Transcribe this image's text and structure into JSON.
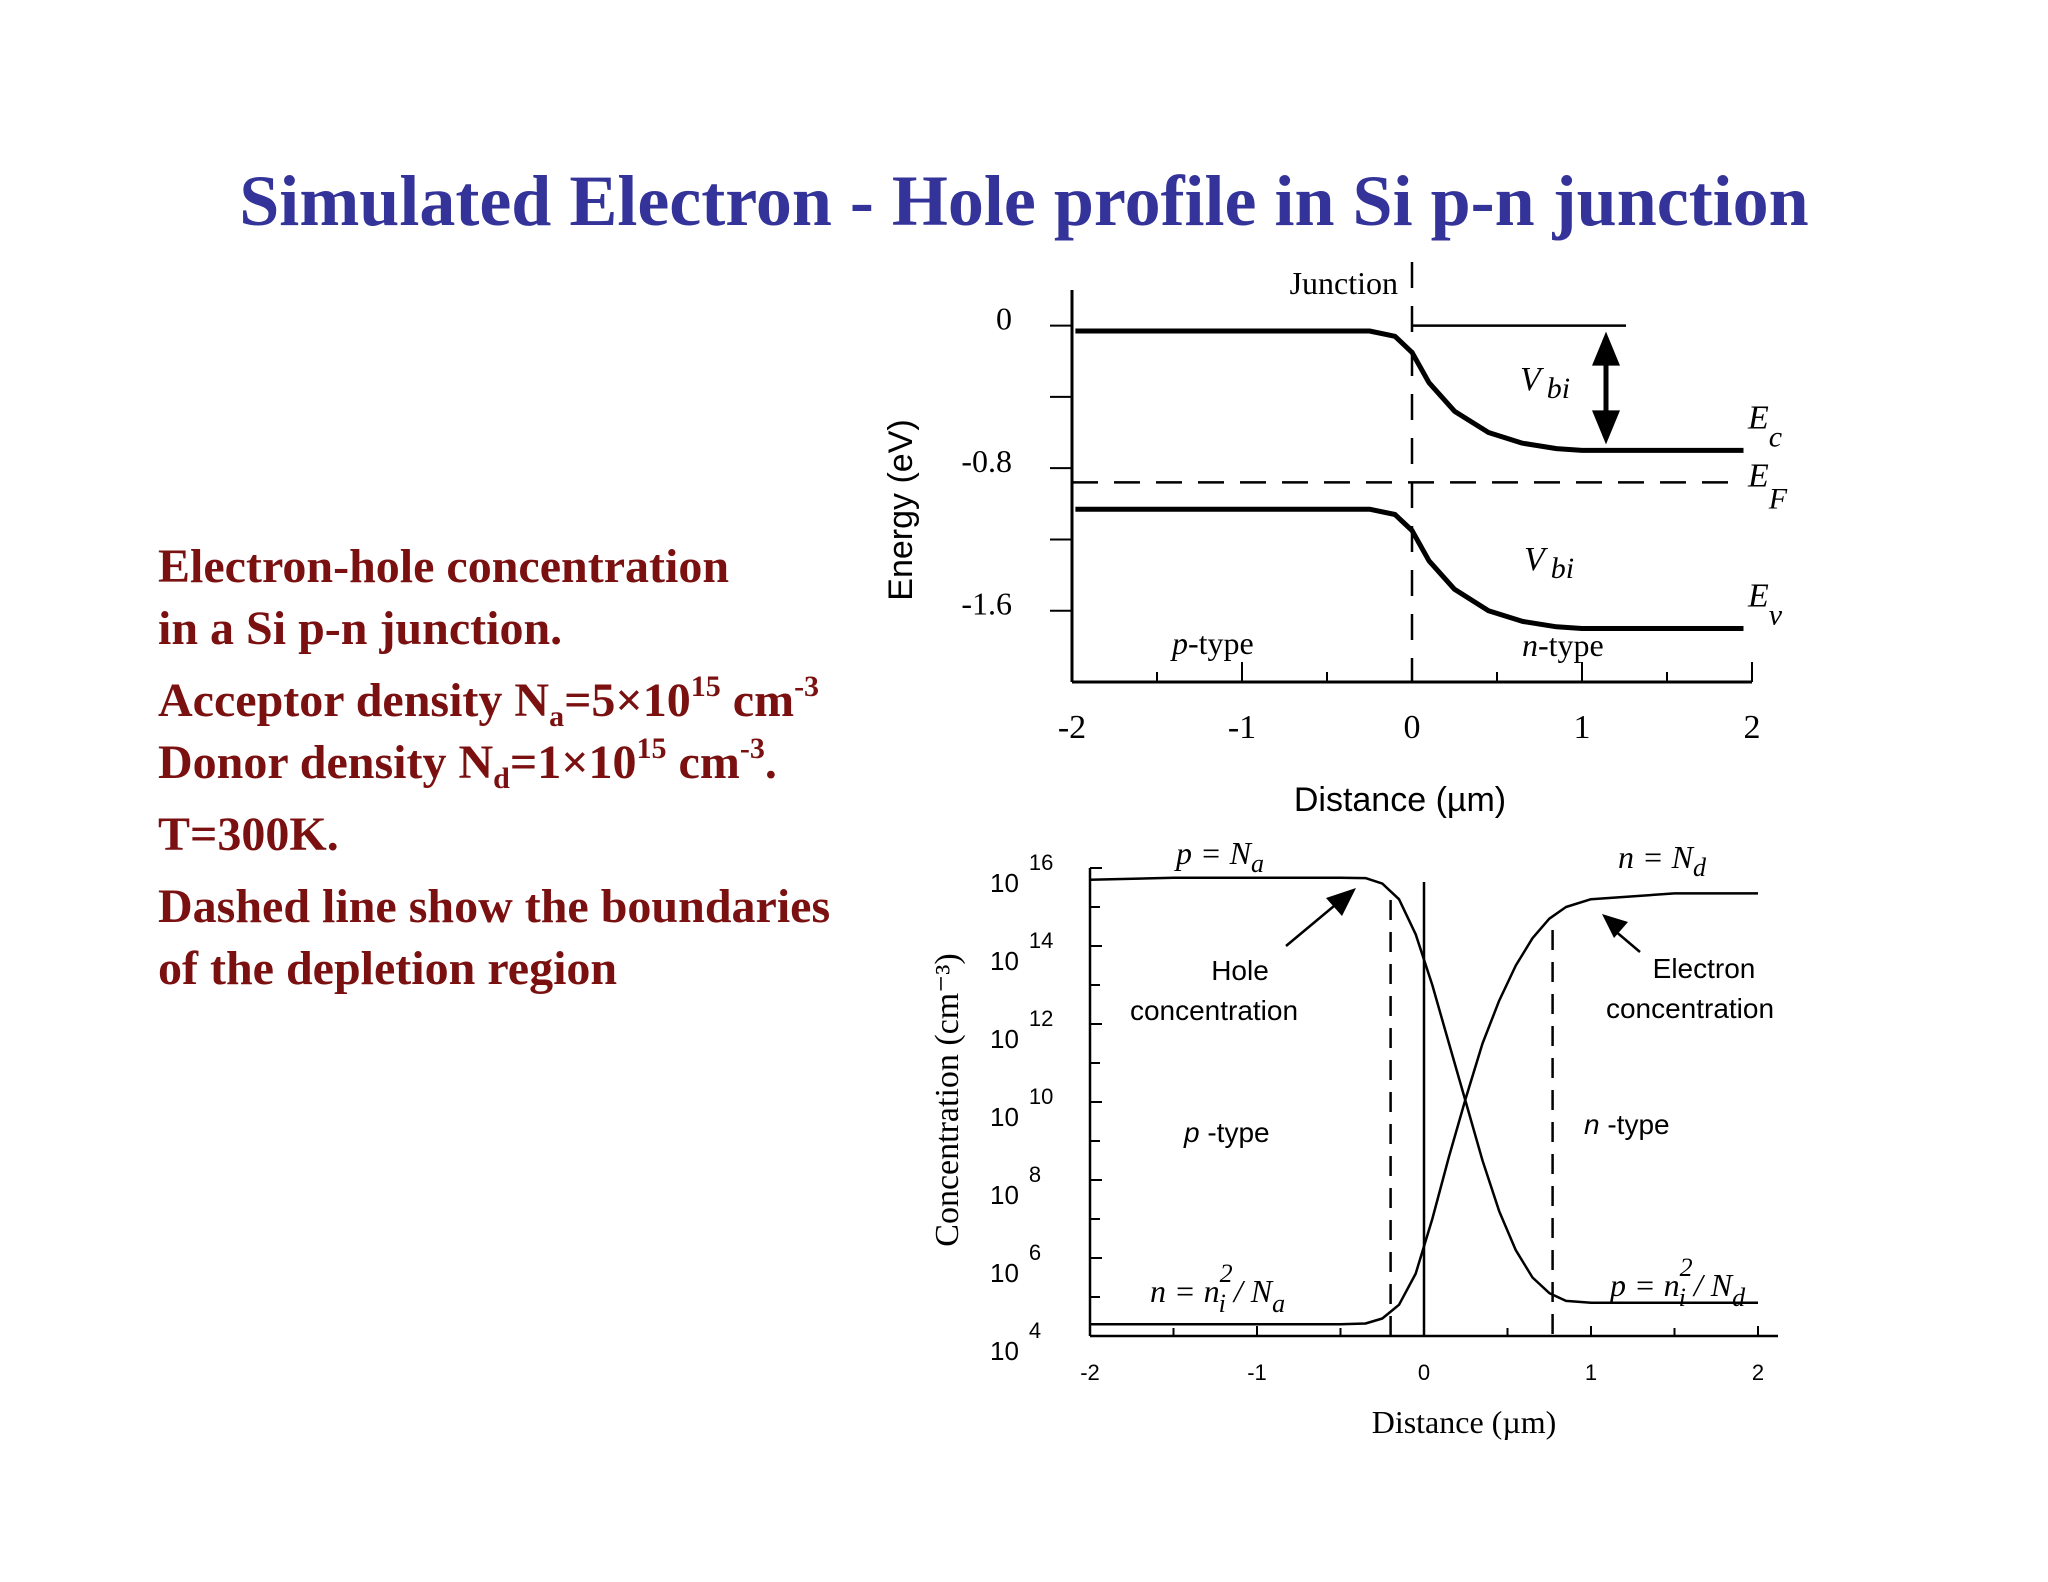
{
  "title": "Simulated Electron - Hole profile in Si p-n junction",
  "notes": {
    "line1": "Electron-hole concentration",
    "line2": "in a Si p-n junction.",
    "acceptor_prefix": "Acceptor density N",
    "acceptor_sub": "a",
    "acceptor_mid": "=5×10",
    "acceptor_exp": "15",
    "acceptor_unit": " cm",
    "acceptor_unit_exp": "-3",
    "donor_prefix": "Donor density N",
    "donor_sub": "d",
    "donor_mid": "=1×10",
    "donor_exp": "15",
    "donor_unit": " cm",
    "donor_unit_exp": "-3",
    "donor_end": ".",
    "temperature": "T=300K.",
    "dashed1": "Dashed line show the boundaries",
    "dashed2": "of the depletion region"
  },
  "chart_data": [
    {
      "type": "line",
      "ylabel": "Energy (eV)",
      "xlabel": "Distance (µm)",
      "x_ticks": [
        "-2",
        "-1",
        "0",
        "1",
        "2"
      ],
      "y_ticks": [
        "0",
        "-0.8",
        "-1.6"
      ],
      "xlim": [
        -2,
        2
      ],
      "ylim": [
        -2.0,
        0.2
      ],
      "junction_label": "Junction",
      "vbi_label": "V",
      "vbi_sub": "bi",
      "region_p": "p",
      "region_p_suffix": "-type",
      "region_n": "n",
      "region_n_suffix": "-type",
      "fermi_level": -0.88,
      "series": [
        {
          "name": "E",
          "name_sub": "c",
          "x": [
            -1.98,
            -0.5,
            -0.25,
            -0.1,
            0.0,
            0.1,
            0.25,
            0.45,
            0.65,
            0.85,
            1.0,
            1.5,
            1.95
          ],
          "y": [
            -0.03,
            -0.03,
            -0.03,
            -0.06,
            -0.15,
            -0.32,
            -0.48,
            -0.6,
            -0.66,
            -0.69,
            -0.7,
            -0.7,
            -0.7
          ]
        },
        {
          "name": "E",
          "name_sub": "v",
          "x": [
            -1.98,
            -0.5,
            -0.25,
            -0.1,
            0.0,
            0.1,
            0.25,
            0.45,
            0.65,
            0.85,
            1.0,
            1.5,
            1.95
          ],
          "y": [
            -1.03,
            -1.03,
            -1.03,
            -1.06,
            -1.15,
            -1.32,
            -1.48,
            -1.6,
            -1.66,
            -1.69,
            -1.7,
            -1.7,
            -1.7
          ]
        }
      ],
      "fermi_label": "E",
      "fermi_sub": "F"
    },
    {
      "type": "line",
      "ylabel": "Concentration (cm⁻³)",
      "xlabel": "Distance (µm)",
      "x_ticks": [
        "-2",
        "-1",
        "0",
        "1",
        "2"
      ],
      "y_tick_base": "10",
      "y_tick_exps": [
        "16",
        "14",
        "12",
        "10",
        "8",
        "6",
        "4"
      ],
      "xlim": [
        -2,
        2
      ],
      "ylim": [
        4,
        16
      ],
      "depletion_left": -0.2,
      "depletion_right": 0.77,
      "junction_x": 0,
      "label_p_eq": "p = N",
      "label_p_eq_sub": "a",
      "label_n_eq": "n = N",
      "label_n_eq_sub": "d",
      "label_n_min": "n = n",
      "label_n_min_sup": "2",
      "label_n_min_sub": "i",
      "label_n_min_rest": " / N",
      "label_n_min_rest_sub": "a",
      "label_p_min": "p = n",
      "label_p_min_sup": "2",
      "label_p_min_sub": "i",
      "label_p_min_rest": " / N",
      "label_p_min_rest_sub": "d",
      "hole_label_1": "Hole",
      "hole_label_2": "concentration",
      "electron_label_1": "Electron",
      "electron_label_2": "concentration",
      "region_p": "p",
      "region_p_suffix": " -type",
      "region_n": "n",
      "region_n_suffix": " -type",
      "series": [
        {
          "name": "Hole concentration",
          "x": [
            -2.0,
            -1.5,
            -1.0,
            -0.5,
            -0.35,
            -0.25,
            -0.15,
            -0.05,
            0.05,
            0.15,
            0.25,
            0.35,
            0.45,
            0.55,
            0.65,
            0.75,
            0.85,
            1.0,
            1.5,
            2.0
          ],
          "y": [
            15.7,
            15.75,
            15.75,
            15.75,
            15.74,
            15.6,
            15.2,
            14.3,
            13.0,
            11.5,
            10.0,
            8.5,
            7.2,
            6.2,
            5.5,
            5.1,
            4.9,
            4.85,
            4.85,
            4.85
          ]
        },
        {
          "name": "Electron concentration",
          "x": [
            -2.0,
            -1.5,
            -1.0,
            -0.5,
            -0.35,
            -0.25,
            -0.15,
            -0.05,
            0.05,
            0.15,
            0.25,
            0.35,
            0.45,
            0.55,
            0.65,
            0.75,
            0.85,
            1.0,
            1.5,
            2.0
          ],
          "y": [
            4.3,
            4.3,
            4.3,
            4.3,
            4.32,
            4.45,
            4.8,
            5.6,
            7.0,
            8.6,
            10.1,
            11.5,
            12.6,
            13.5,
            14.2,
            14.7,
            15.0,
            15.2,
            15.35,
            15.35
          ]
        }
      ]
    }
  ]
}
